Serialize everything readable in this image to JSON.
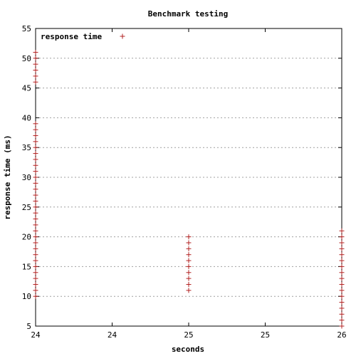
{
  "chart_data": {
    "type": "scatter",
    "title": "Benchmark testing",
    "xlabel": "seconds",
    "ylabel": "response time (ms)",
    "xlim": [
      24,
      26
    ],
    "ylim": [
      5,
      55
    ],
    "x_ticks": [
      {
        "value": 24,
        "label": "24"
      },
      {
        "value": 24.5,
        "label": "24"
      },
      {
        "value": 25,
        "label": "25"
      },
      {
        "value": 25.5,
        "label": "25"
      },
      {
        "value": 26,
        "label": "26"
      }
    ],
    "y_ticks": [
      5,
      10,
      15,
      20,
      25,
      30,
      35,
      40,
      45,
      50,
      55
    ],
    "grid": "horizontal",
    "legend_position": "top-left",
    "marker_color": "#b22222",
    "series": [
      {
        "name": "response time",
        "points": [
          [
            24,
            46
          ],
          [
            24,
            47
          ],
          [
            24,
            48
          ],
          [
            24,
            49
          ],
          [
            24,
            50
          ],
          [
            24,
            51
          ],
          [
            24,
            10
          ],
          [
            24,
            11
          ],
          [
            24,
            12
          ],
          [
            24,
            13
          ],
          [
            24,
            14
          ],
          [
            24,
            15
          ],
          [
            24,
            16
          ],
          [
            24,
            17
          ],
          [
            24,
            18
          ],
          [
            24,
            19
          ],
          [
            24,
            20
          ],
          [
            24,
            21
          ],
          [
            24,
            22
          ],
          [
            24,
            23
          ],
          [
            24,
            24
          ],
          [
            24,
            25
          ],
          [
            24,
            26
          ],
          [
            24,
            27
          ],
          [
            24,
            28
          ],
          [
            24,
            29
          ],
          [
            24,
            30
          ],
          [
            24,
            31
          ],
          [
            24,
            32
          ],
          [
            24,
            33
          ],
          [
            24,
            34
          ],
          [
            24,
            35
          ],
          [
            24,
            36
          ],
          [
            24,
            37
          ],
          [
            24,
            38
          ],
          [
            24,
            39
          ],
          [
            25,
            11
          ],
          [
            25,
            12
          ],
          [
            25,
            13
          ],
          [
            25,
            14
          ],
          [
            25,
            15
          ],
          [
            25,
            16
          ],
          [
            25,
            17
          ],
          [
            25,
            18
          ],
          [
            25,
            19
          ],
          [
            25,
            20
          ],
          [
            26,
            5
          ],
          [
            26,
            6
          ],
          [
            26,
            7
          ],
          [
            26,
            8
          ],
          [
            26,
            9
          ],
          [
            26,
            10
          ],
          [
            26,
            11
          ],
          [
            26,
            12
          ],
          [
            26,
            13
          ],
          [
            26,
            14
          ],
          [
            26,
            15
          ],
          [
            26,
            16
          ],
          [
            26,
            17
          ],
          [
            26,
            18
          ],
          [
            26,
            19
          ],
          [
            26,
            20
          ],
          [
            26,
            21
          ]
        ]
      }
    ]
  }
}
